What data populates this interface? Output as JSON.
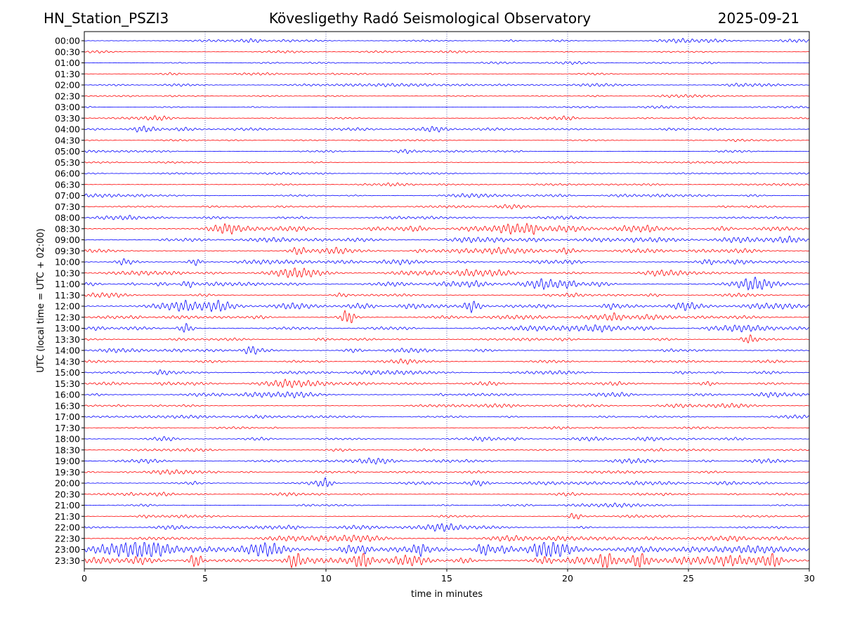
{
  "header": {
    "station": "HN_Station_PSZI3",
    "observatory": "Kövesligethy Radó Seismological Observatory",
    "date": "2025-09-21"
  },
  "chart_data": {
    "type": "line",
    "title": "Kövesligethy Radó Seismological Observatory",
    "xlabel": "time in minutes",
    "ylabel": "UTC (local time = UTC + 02:00)",
    "xlim": [
      0,
      30
    ],
    "x_ticks": [
      "0",
      "5",
      "10",
      "15",
      "20",
      "25",
      "30"
    ],
    "grid": "vertical dotted lines at x = 5, 10, 15, 20, 25",
    "colors": [
      "#0000ff",
      "#ff0000"
    ],
    "traces": [
      "00:00",
      "00:30",
      "01:00",
      "01:30",
      "02:00",
      "02:30",
      "03:00",
      "03:30",
      "04:00",
      "04:30",
      "05:00",
      "05:30",
      "06:00",
      "06:30",
      "07:00",
      "07:30",
      "08:00",
      "08:30",
      "09:00",
      "09:30",
      "10:00",
      "10:30",
      "11:00",
      "11:30",
      "12:00",
      "12:30",
      "13:00",
      "13:30",
      "14:00",
      "14:30",
      "15:00",
      "15:30",
      "16:00",
      "16:30",
      "17:00",
      "17:30",
      "18:00",
      "18:30",
      "19:00",
      "19:30",
      "20:00",
      "20:30",
      "21:00",
      "21:30",
      "22:00",
      "22:30",
      "23:00",
      "23:30"
    ],
    "noise_level": [
      0.5,
      0.3,
      0.35,
      0.3,
      0.5,
      0.35,
      0.3,
      0.45,
      0.6,
      0.3,
      0.4,
      0.3,
      0.35,
      0.4,
      0.5,
      0.5,
      0.6,
      1.0,
      0.8,
      0.8,
      0.7,
      0.8,
      1.0,
      0.6,
      1.0,
      0.7,
      0.8,
      0.5,
      0.6,
      0.5,
      0.6,
      0.7,
      0.7,
      0.5,
      0.5,
      0.4,
      0.6,
      0.4,
      0.6,
      0.5,
      0.6,
      0.5,
      0.4,
      0.4,
      0.6,
      0.8,
      1.3,
      1.2
    ],
    "events": [
      {
        "trace": "08:30",
        "minute": 18.5,
        "amplitude": 2.5
      },
      {
        "trace": "09:30",
        "minute": 8.9,
        "amplitude": 2.0
      },
      {
        "trace": "10:00",
        "minute": 4.6,
        "amplitude": 2.0
      },
      {
        "trace": "10:00",
        "minute": 1.6,
        "amplitude": 1.8
      },
      {
        "trace": "11:00",
        "minute": 4.3,
        "amplitude": 2.0
      },
      {
        "trace": "12:00",
        "minute": 16.0,
        "amplitude": 3.0
      },
      {
        "trace": "12:30",
        "minute": 10.9,
        "amplitude": 4.0
      },
      {
        "trace": "13:00",
        "minute": 4.2,
        "amplitude": 2.8
      },
      {
        "trace": "13:30",
        "minute": 27.5,
        "amplitude": 2.0
      },
      {
        "trace": "14:00",
        "minute": 6.9,
        "amplitude": 2.5
      },
      {
        "trace": "20:00",
        "minute": 10.0,
        "amplitude": 2.5
      },
      {
        "trace": "21:30",
        "minute": 20.3,
        "amplitude": 2.0
      },
      {
        "trace": "23:00",
        "minute": 13.9,
        "amplitude": 3.0
      },
      {
        "trace": "23:00",
        "minute": 16.5,
        "amplitude": 3.0
      },
      {
        "trace": "23:30",
        "minute": 4.6,
        "amplitude": 4.0
      },
      {
        "trace": "23:30",
        "minute": 8.7,
        "amplitude": 4.0
      },
      {
        "trace": "23:30",
        "minute": 11.5,
        "amplitude": 3.5
      },
      {
        "trace": "23:30",
        "minute": 21.6,
        "amplitude": 4.0
      },
      {
        "trace": "23:30",
        "minute": 23.0,
        "amplitude": 3.5
      },
      {
        "trace": "23:30",
        "minute": 28.5,
        "amplitude": 4.0
      }
    ]
  }
}
